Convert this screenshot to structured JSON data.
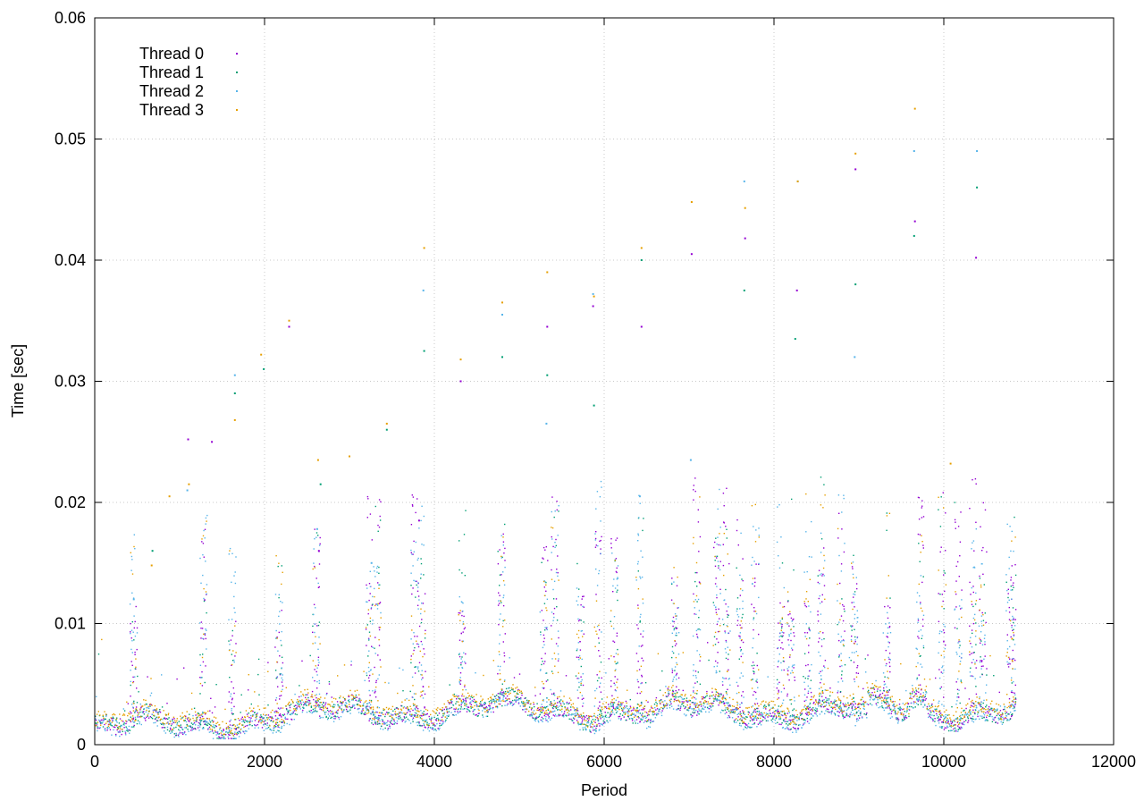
{
  "chart_data": {
    "type": "scatter",
    "title": "",
    "xlabel": "Period",
    "ylabel": "Time [sec]",
    "xlim": [
      0,
      12000
    ],
    "ylim": [
      0,
      0.06
    ],
    "xticks": [
      0,
      2000,
      4000,
      6000,
      8000,
      10000,
      12000
    ],
    "yticks": [
      0,
      0.01,
      0.02,
      0.03,
      0.04,
      0.05,
      0.06
    ],
    "xtick_labels": [
      "0",
      "2000",
      "4000",
      "6000",
      "8000",
      "10000",
      "12000"
    ],
    "ytick_labels": [
      "0",
      "0.01",
      "0.02",
      "0.03",
      "0.04",
      "0.05",
      "0.06"
    ],
    "grid": true,
    "legend_position": "top-left",
    "n_periods": 10850,
    "series": [
      {
        "name": "Thread 0",
        "color": "#9400d3",
        "outliers": [
          [
            1100,
            0.0252
          ],
          [
            1380,
            0.025
          ],
          [
            2290,
            0.0345
          ],
          [
            2640,
            0.016
          ],
          [
            3820,
            0.0185
          ],
          [
            4310,
            0.03
          ],
          [
            5330,
            0.0345
          ],
          [
            5870,
            0.0362
          ],
          [
            6440,
            0.0345
          ],
          [
            7030,
            0.0405
          ],
          [
            7660,
            0.0418
          ],
          [
            8270,
            0.0375
          ],
          [
            8960,
            0.0475
          ],
          [
            9660,
            0.0432
          ],
          [
            10380,
            0.0402
          ]
        ]
      },
      {
        "name": "Thread 1",
        "color": "#009e73",
        "outliers": [
          [
            680,
            0.016
          ],
          [
            1650,
            0.029
          ],
          [
            1990,
            0.031
          ],
          [
            2660,
            0.0215
          ],
          [
            3440,
            0.026
          ],
          [
            3880,
            0.0325
          ],
          [
            4800,
            0.032
          ],
          [
            5330,
            0.0305
          ],
          [
            5880,
            0.028
          ],
          [
            6440,
            0.04
          ],
          [
            7650,
            0.0375
          ],
          [
            8250,
            0.0335
          ],
          [
            8960,
            0.038
          ],
          [
            9650,
            0.042
          ],
          [
            10390,
            0.046
          ]
        ]
      },
      {
        "name": "Thread 2",
        "color": "#56b4e9",
        "outliers": [
          [
            460,
            0.012
          ],
          [
            1090,
            0.021
          ],
          [
            1650,
            0.0305
          ],
          [
            2620,
            0.0178
          ],
          [
            3260,
            0.015
          ],
          [
            3870,
            0.0375
          ],
          [
            4800,
            0.0355
          ],
          [
            5320,
            0.0265
          ],
          [
            5870,
            0.0372
          ],
          [
            6420,
            0.0205
          ],
          [
            7020,
            0.0235
          ],
          [
            7650,
            0.0465
          ],
          [
            8280,
            0.0465
          ],
          [
            8950,
            0.032
          ],
          [
            9650,
            0.049
          ],
          [
            10390,
            0.049
          ]
        ]
      },
      {
        "name": "Thread 3",
        "color": "#e69f00",
        "outliers": [
          [
            670,
            0.0148
          ],
          [
            880,
            0.0205
          ],
          [
            1110,
            0.0215
          ],
          [
            1650,
            0.0268
          ],
          [
            1960,
            0.0322
          ],
          [
            2290,
            0.035
          ],
          [
            2630,
            0.0235
          ],
          [
            3000,
            0.0238
          ],
          [
            3440,
            0.0265
          ],
          [
            3880,
            0.041
          ],
          [
            4310,
            0.0318
          ],
          [
            4800,
            0.0365
          ],
          [
            5330,
            0.039
          ],
          [
            5880,
            0.037
          ],
          [
            6440,
            0.041
          ],
          [
            7030,
            0.0448
          ],
          [
            7660,
            0.0443
          ],
          [
            8280,
            0.0465
          ],
          [
            8960,
            0.0488
          ],
          [
            9660,
            0.0525
          ],
          [
            10080,
            0.0232
          ]
        ]
      }
    ]
  }
}
